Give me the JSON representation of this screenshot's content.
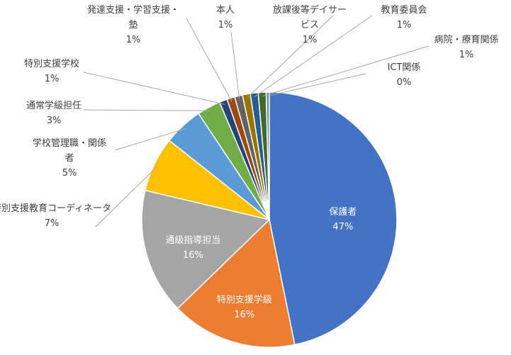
{
  "chart_data": {
    "type": "pie",
    "title": "",
    "slices": [
      {
        "label": "保護者",
        "value": 47,
        "pct_label": "47%",
        "color": "#4472C4"
      },
      {
        "label": "特別支援学級",
        "value": 16,
        "pct_label": "16%",
        "color": "#ED7D31"
      },
      {
        "label": "通級指導担当",
        "value": 16,
        "pct_label": "16%",
        "color": "#A5A5A5"
      },
      {
        "label": "特別支援教育コーディネーター",
        "value": 7,
        "pct_label": "7%",
        "color": "#FFC000"
      },
      {
        "label": "学校管理職・関係者",
        "value": 5,
        "pct_label": "5%",
        "color": "#5B9BD5"
      },
      {
        "label": "通常学級担任",
        "value": 3,
        "pct_label": "3%",
        "color": "#70AD47"
      },
      {
        "label": "特別支援学校",
        "value": 1,
        "pct_label": "1%",
        "color": "#264478"
      },
      {
        "label": "発達支援・学習支援・塾",
        "value": 1,
        "pct_label": "1%",
        "color": "#9E480E"
      },
      {
        "label": "本人",
        "value": 1,
        "pct_label": "1%",
        "color": "#636363"
      },
      {
        "label": "放課後等デイサービス",
        "value": 1,
        "pct_label": "1%",
        "color": "#997300"
      },
      {
        "label": "教育委員会",
        "value": 1,
        "pct_label": "1%",
        "color": "#255E91"
      },
      {
        "label": "病院・療育関係",
        "value": 1,
        "pct_label": "1%",
        "color": "#43682B"
      },
      {
        "label": "ICT関係",
        "value": 0.4,
        "pct_label": "0%",
        "color": "#698ED0"
      }
    ]
  }
}
